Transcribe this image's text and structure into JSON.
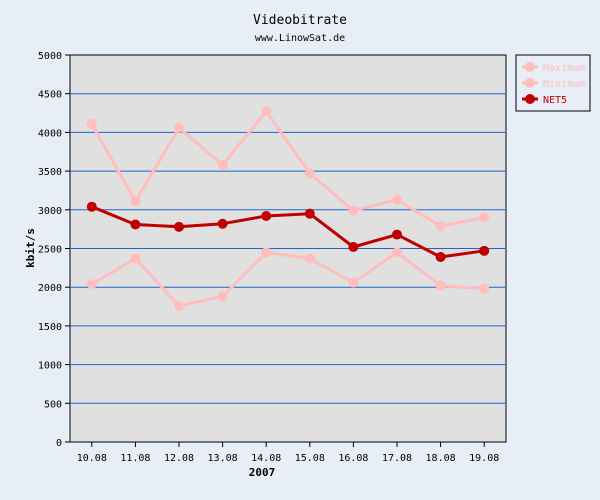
{
  "chart_data": {
    "type": "line",
    "title": "Videobitrate",
    "subtitle": "www.LinowSat.de",
    "xlabel": "2007",
    "ylabel": "kbit/s",
    "ylim": [
      0,
      5000
    ],
    "yticks": [
      0,
      500,
      1000,
      1500,
      2000,
      2500,
      3000,
      3500,
      4000,
      4500,
      5000
    ],
    "categories": [
      "10.08",
      "11.08",
      "12.08",
      "13.08",
      "14.08",
      "15.08",
      "16.08",
      "17.08",
      "18.08",
      "19.08"
    ],
    "grid": "horizontal",
    "legend": "top-right",
    "series": [
      {
        "name": "Maximum",
        "color": "#ffbdbd",
        "values": [
          4110,
          3110,
          4060,
          3580,
          4270,
          3470,
          2990,
          3130,
          2790,
          2900
        ]
      },
      {
        "name": "Minimum",
        "color": "#ffbdbd",
        "values": [
          2040,
          2370,
          1760,
          1880,
          2450,
          2370,
          2060,
          2450,
          2020,
          1980
        ]
      },
      {
        "name": "NET5",
        "color": "#c00000",
        "values": [
          3040,
          2810,
          2780,
          2820,
          2920,
          2950,
          2520,
          2680,
          2390,
          2470
        ]
      }
    ]
  }
}
